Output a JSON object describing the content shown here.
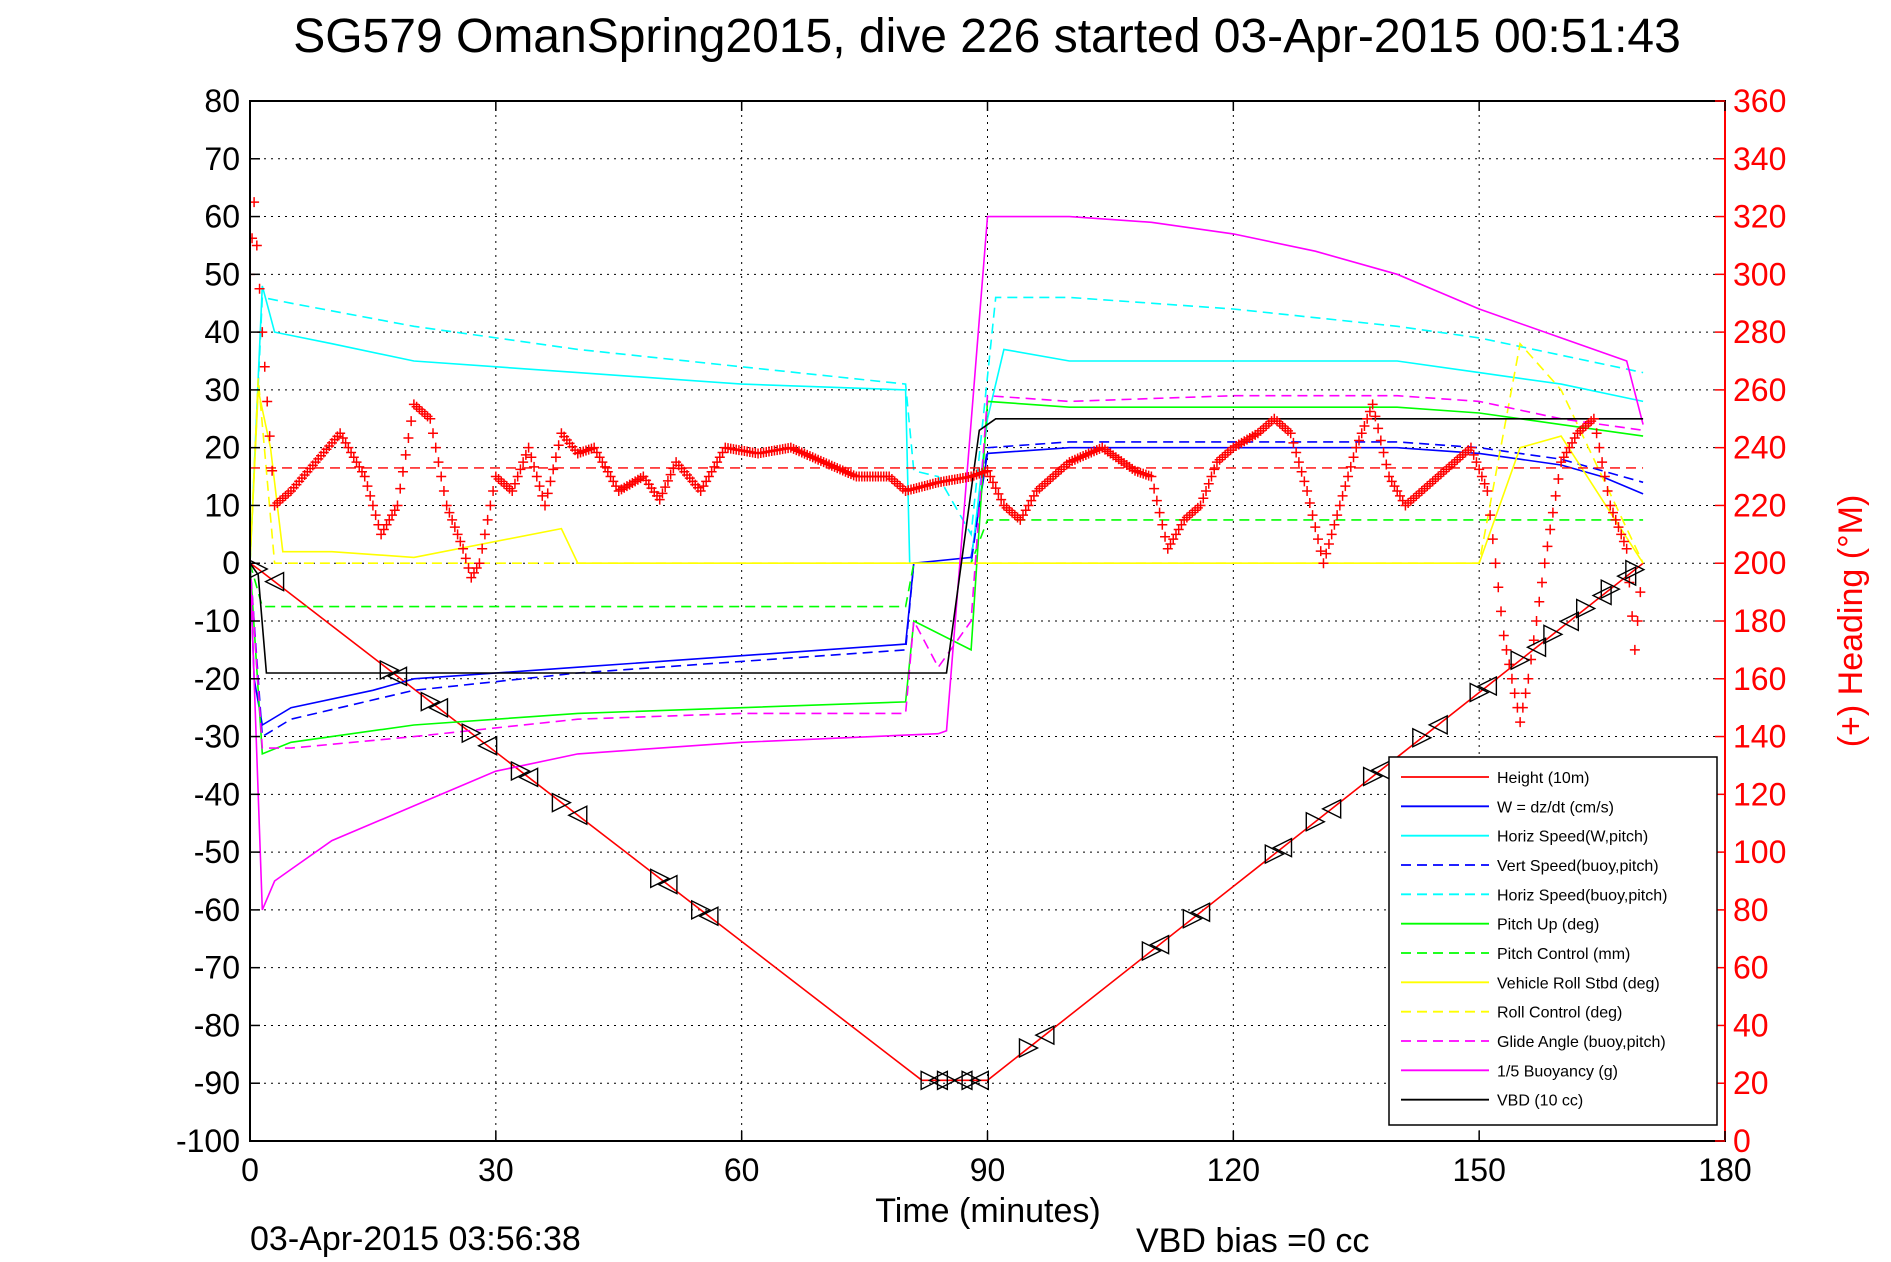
{
  "chart_data": {
    "type": "line",
    "title": "SG579 OmanSpring2015, dive 226 started 03-Apr-2015 00:51:43",
    "xlabel": "Time (minutes)",
    "ylabel": "",
    "ylabel_right": "(+) Heading (°M)",
    "xlim": [
      0,
      180
    ],
    "ylim": [
      -100,
      80
    ],
    "ylim_right": [
      0,
      360
    ],
    "x_ticks": [
      "0",
      "30",
      "60",
      "90",
      "120",
      "150",
      "180"
    ],
    "y_ticks": [
      "80",
      "70",
      "60",
      "50",
      "40",
      "30",
      "20",
      "10",
      "0",
      "-10",
      "-20",
      "-30",
      "-40",
      "-50",
      "-60",
      "-70",
      "-80",
      "-90",
      "-100"
    ],
    "y_ticks_right": [
      "360",
      "340",
      "320",
      "300",
      "280",
      "260",
      "240",
      "220",
      "200",
      "180",
      "160",
      "140",
      "120",
      "100",
      "80",
      "60",
      "40",
      "20",
      "0"
    ],
    "grid": true,
    "legend_position": "bottom-right",
    "footer_left": "03-Apr-2015 03:56:38",
    "footer_right": "VBD bias =0 cc",
    "series": [
      {
        "name": "Height (10m)",
        "color": "#ff0000",
        "dash": "solid",
        "x": [
          0,
          1,
          82,
          90,
          170
        ],
        "y": [
          0,
          -1,
          -89.5,
          -89.5,
          0
        ]
      },
      {
        "name": "W = dz/dt (cm/s)",
        "color": "#0000ff",
        "dash": "solid",
        "x": [
          0,
          0.5,
          1.5,
          5,
          15,
          20,
          40,
          60,
          80,
          81,
          88,
          90,
          100,
          120,
          140,
          150,
          155,
          160,
          165,
          170
        ],
        "y": [
          0,
          -20,
          -28,
          -25,
          -22,
          -20,
          -18,
          -16,
          -14,
          0,
          1,
          19,
          20,
          20,
          20,
          19,
          18,
          17,
          15,
          12
        ]
      },
      {
        "name": "Horiz Speed(W,pitch)",
        "color": "#00ffff",
        "dash": "solid",
        "x": [
          0,
          1.5,
          3,
          10,
          20,
          40,
          60,
          80,
          80.5,
          88,
          90,
          92,
          100,
          120,
          140,
          150,
          160,
          170
        ],
        "y": [
          0,
          48,
          40,
          38,
          35,
          33,
          31,
          30,
          0,
          0,
          25,
          37,
          35,
          35,
          35,
          33,
          31,
          28
        ]
      },
      {
        "name": "Vert Speed(buoy,pitch)",
        "color": "#0000ff",
        "dash": "dashed",
        "x": [
          0,
          1.5,
          5,
          20,
          40,
          60,
          80,
          81,
          88,
          90,
          100,
          120,
          140,
          150,
          160,
          170
        ],
        "y": [
          0,
          -30,
          -27,
          -22,
          -19,
          -17,
          -15,
          0,
          0,
          20,
          21,
          21,
          21,
          20,
          18,
          14
        ]
      },
      {
        "name": "Horiz Speed(buoy,pitch)",
        "color": "#00ffff",
        "dash": "dashed",
        "x": [
          0,
          1.5,
          5,
          20,
          40,
          60,
          80,
          81,
          84,
          88,
          91,
          100,
          120,
          140,
          150,
          160,
          170
        ],
        "y": [
          0,
          46,
          45,
          41,
          37,
          34,
          31,
          16,
          15,
          5,
          46,
          46,
          44,
          41,
          39,
          36,
          33
        ]
      },
      {
        "name": "Pitch Up (deg)",
        "color": "#00ff00",
        "dash": "solid",
        "x": [
          0,
          1.5,
          5,
          20,
          40,
          60,
          80,
          81,
          88,
          90,
          100,
          120,
          140,
          150,
          160,
          170
        ],
        "y": [
          0,
          -33,
          -31,
          -28,
          -26,
          -25,
          -24,
          -10,
          -15,
          28,
          27,
          27,
          27,
          26,
          24,
          22
        ]
      },
      {
        "name": "Pitch Control (mm)",
        "color": "#00ff00",
        "dash": "dashed",
        "x": [
          0,
          1.5,
          80,
          81,
          88,
          90,
          170
        ],
        "y": [
          0,
          -7.5,
          -7.5,
          0,
          0,
          7.5,
          7.5
        ]
      },
      {
        "name": "Vehicle Roll Stbd (deg)",
        "color": "#ffff00",
        "dash": "solid",
        "x": [
          0,
          1,
          2.5,
          4,
          10,
          20,
          38,
          40,
          80,
          90,
          110,
          150,
          155,
          160,
          170
        ],
        "y": [
          0,
          30,
          20,
          2,
          2,
          1,
          6,
          0,
          0,
          0,
          0,
          0,
          20,
          22,
          0
        ]
      },
      {
        "name": "Roll Control (deg)",
        "color": "#ffff00",
        "dash": "dashed",
        "x": [
          0,
          1,
          3,
          40,
          80,
          150,
          155,
          160,
          170
        ],
        "y": [
          0,
          32,
          0,
          0,
          0,
          0,
          38,
          30,
          0
        ]
      },
      {
        "name": "Glide Angle (buoy,pitch)",
        "color": "#ff00ff",
        "dash": "dashed",
        "x": [
          0,
          1.5,
          5,
          20,
          40,
          60,
          80,
          81,
          84,
          88,
          90,
          100,
          120,
          140,
          150,
          160,
          170
        ],
        "y": [
          0,
          -32,
          -32,
          -30,
          -27,
          -26,
          -26,
          -10,
          -18,
          -10,
          29,
          28,
          29,
          29,
          28,
          25,
          23
        ]
      },
      {
        "name": "1/5 Buoyancy (g)",
        "color": "#ff00ff",
        "dash": "solid",
        "x": [
          0,
          1.5,
          3,
          5,
          10,
          20,
          30,
          40,
          60,
          84,
          85,
          90,
          91,
          100,
          110,
          120,
          130,
          140,
          150,
          160,
          168,
          170
        ],
        "y": [
          0,
          -60,
          -55,
          -53,
          -48,
          -42,
          -36,
          -33,
          -31,
          -29.5,
          -29,
          60,
          60,
          60,
          59,
          57,
          54,
          50,
          44,
          39,
          35,
          24
        ]
      },
      {
        "name": "VBD (10 cc)",
        "color": "#000000",
        "dash": "solid",
        "x": [
          0,
          1,
          2,
          84,
          85,
          89,
          91,
          170
        ],
        "y": [
          0,
          -2,
          -19,
          -19,
          -19,
          23,
          25,
          25
        ]
      }
    ],
    "heading": {
      "name": "(+) Heading (°M)",
      "color": "#ff0000",
      "mean_line": 233,
      "x": [
        0,
        0.5,
        1.5,
        3,
        5,
        8,
        11,
        14,
        16,
        18,
        20,
        22,
        24,
        26,
        27,
        28,
        30,
        32,
        34,
        36,
        38,
        40,
        42,
        45,
        48,
        50,
        52,
        55,
        58,
        62,
        66,
        70,
        74,
        78,
        80,
        84,
        88,
        90,
        92,
        94,
        96,
        98,
        100,
        104,
        108,
        110,
        112,
        114,
        116,
        118,
        120,
        123,
        125,
        127,
        129,
        131,
        133,
        135,
        137,
        139,
        141,
        143,
        145,
        147,
        149,
        151,
        153,
        155,
        156,
        158,
        160,
        162,
        164,
        166,
        168,
        169,
        170
      ],
      "y": [
        300,
        325,
        280,
        220,
        225,
        235,
        245,
        230,
        210,
        220,
        255,
        250,
        220,
        205,
        195,
        200,
        230,
        225,
        240,
        220,
        245,
        238,
        240,
        225,
        230,
        222,
        235,
        225,
        240,
        238,
        240,
        235,
        230,
        230,
        225,
        228,
        230,
        232,
        220,
        215,
        225,
        230,
        235,
        240,
        232,
        230,
        205,
        215,
        220,
        235,
        240,
        245,
        250,
        245,
        225,
        200,
        220,
        240,
        255,
        230,
        220,
        225,
        230,
        235,
        240,
        225,
        175,
        145,
        160,
        200,
        235,
        245,
        250,
        220,
        205,
        170,
        200
      ]
    },
    "markers": {
      "symbol": "triangle",
      "color": "#000000",
      "x": [
        1,
        3,
        17,
        18,
        22,
        23,
        27,
        29,
        33,
        34,
        38,
        40,
        50,
        51,
        55,
        56,
        83,
        84,
        85,
        87,
        88,
        89,
        95,
        97,
        110,
        111,
        115,
        116,
        125,
        126,
        130,
        132,
        137,
        138,
        143,
        145,
        150,
        151,
        155,
        157,
        159,
        161,
        163,
        165,
        166,
        168,
        169
      ]
    }
  }
}
